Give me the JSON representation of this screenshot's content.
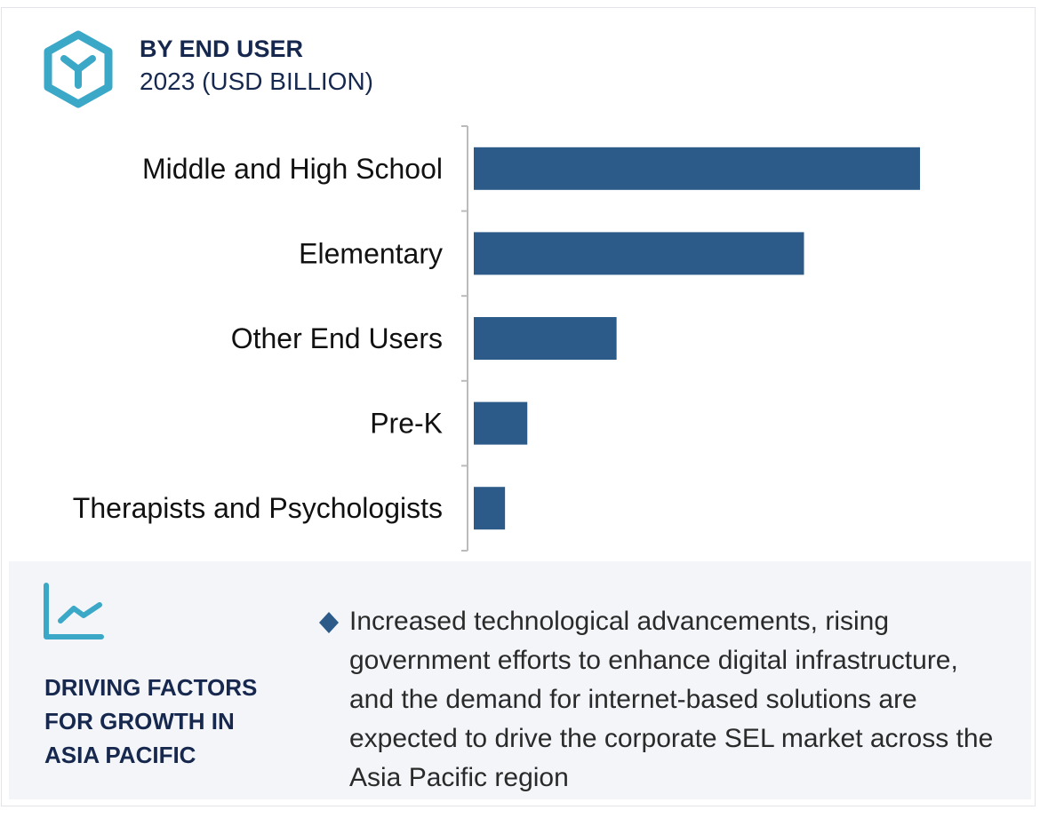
{
  "header": {
    "title": "BY END USER",
    "subtitle": "2023 (USD BILLION)",
    "icon": "hexagon-y-icon"
  },
  "colors": {
    "accent": "#3aa8c6",
    "navy": "#17284f",
    "bar": "#2c5b8a",
    "panel": "#f3f5f9"
  },
  "chart_data": {
    "type": "bar",
    "orientation": "horizontal",
    "title": "BY END USER",
    "subtitle": "2023 (USD BILLION)",
    "categories": [
      "Middle and High School",
      "Elementary",
      "Other End Users",
      "Pre-K",
      "Therapists and Psychologists"
    ],
    "values": [
      100,
      74,
      32,
      12,
      7
    ],
    "xlim": [
      0,
      100
    ],
    "grid": false,
    "value_labels": false
  },
  "drivers": {
    "icon": "trend-chart-icon",
    "heading_lines": [
      "DRIVING FACTORS",
      "FOR GROWTH IN",
      "ASIA PACIFIC"
    ],
    "bullet_icon": "diamond-icon",
    "text": "Increased technological advancements, rising government efforts to enhance digital infrastructure, and the demand for internet-based solutions are expected to drive the corporate SEL market across the Asia Pacific region"
  }
}
